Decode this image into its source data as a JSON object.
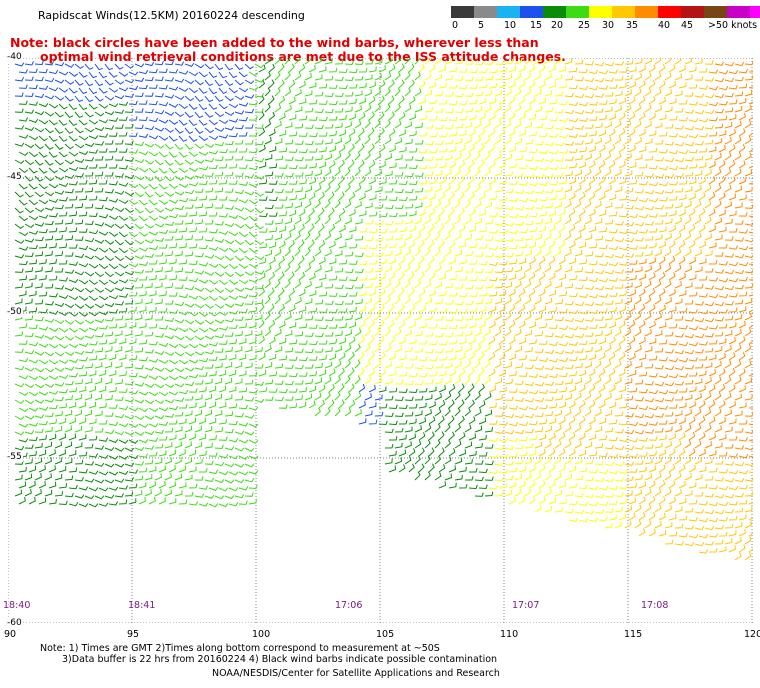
{
  "title": "Rapidscat Winds(12.5KM) 20160224 descending",
  "note": {
    "line1": "Note: black circles have been added to the wind barbs, wherever less than",
    "line2": "optimal wind retrieval conditions are met due to the ISS attitude changes."
  },
  "colorbar": {
    "colors": [
      "#3a3a3a",
      "#8a8a8a",
      "#19b4f0",
      "#1e50f0",
      "#0a8c0a",
      "#3cdc14",
      "#ffff00",
      "#ffc800",
      "#ff8c00",
      "#ff0000",
      "#b41414",
      "#784614",
      "#c800c8",
      "#ff00ff",
      "#64006e"
    ],
    "labels": [
      "0",
      "5",
      "10",
      "15",
      "20",
      "25",
      "30",
      "35",
      "40",
      "45",
      ">50 knots"
    ]
  },
  "lat_labels": [
    "-40",
    "-45",
    "-50",
    "-55",
    "-60"
  ],
  "lon_labels": [
    "90",
    "95",
    "100",
    "105",
    "110",
    "115",
    "120"
  ],
  "time_labels": [
    {
      "text": "18:40"
    },
    {
      "text": "18:41"
    },
    {
      "text": "17:06"
    },
    {
      "text": "17:07"
    },
    {
      "text": "17:08"
    }
  ],
  "footer": {
    "line1": "Note: 1) Times are GMT 2)Times along bottom correspond to measurement at ~50S",
    "line2": "3)Data buffer is 22 hrs from 20160224 4) Black wind barbs indicate possible contamination",
    "line3": "NOAA/NESDIS/Center for Satellite Applications and Research"
  }
}
